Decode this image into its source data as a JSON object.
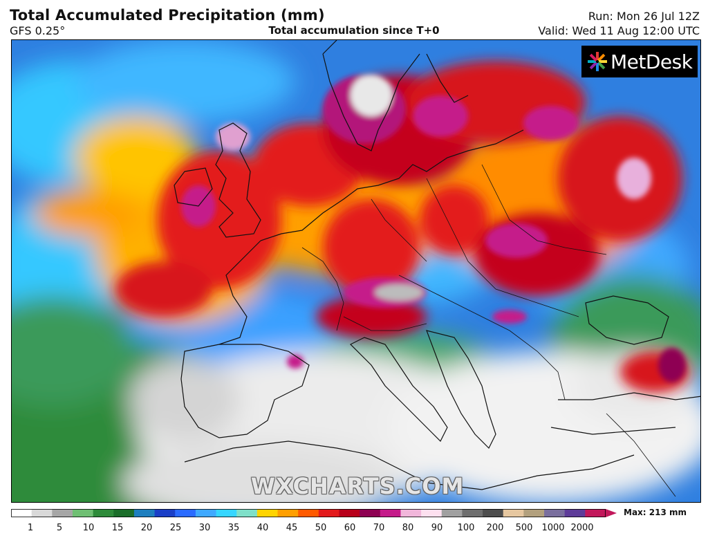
{
  "header": {
    "title": "Total Accumulated Precipitation (mm)",
    "model": "GFS 0.25°",
    "subtitle": "Total accumulation since T+0",
    "run": "Run: Mon 26 Jul 12Z",
    "valid": "Valid: Wed 11 Aug 12:00 UTC"
  },
  "logo": {
    "text": "MetDesk",
    "icon": "metdesk-star-icon"
  },
  "watermark": "WXCHARTS.COM",
  "legend": {
    "max_label": "Max: 213 mm",
    "ticks": [
      "1",
      "5",
      "10",
      "15",
      "20",
      "25",
      "30",
      "35",
      "40",
      "45",
      "50",
      "60",
      "70",
      "80",
      "90",
      "100",
      "200",
      "500",
      "1000",
      "2000"
    ],
    "colors": [
      "#ffffff",
      "#d9d9d9",
      "#a6a6a6",
      "#6fbf73",
      "#2e8b3a",
      "#1b6e2a",
      "#1e7fbf",
      "#1a3fc7",
      "#2a6bff",
      "#3fa9ff",
      "#36d6ff",
      "#7fe0c9",
      "#ffd400",
      "#ff9f00",
      "#ff5a00",
      "#e31a1c",
      "#b8001a",
      "#8e0152",
      "#c51b8a",
      "#f1b6da",
      "#fde0ef",
      "#a0a0a0",
      "#6e6e6e",
      "#4d4d4d",
      "#e6c7a0",
      "#b2a07d",
      "#7a6f9e",
      "#5e3c99",
      "#c2185b"
    ]
  }
}
